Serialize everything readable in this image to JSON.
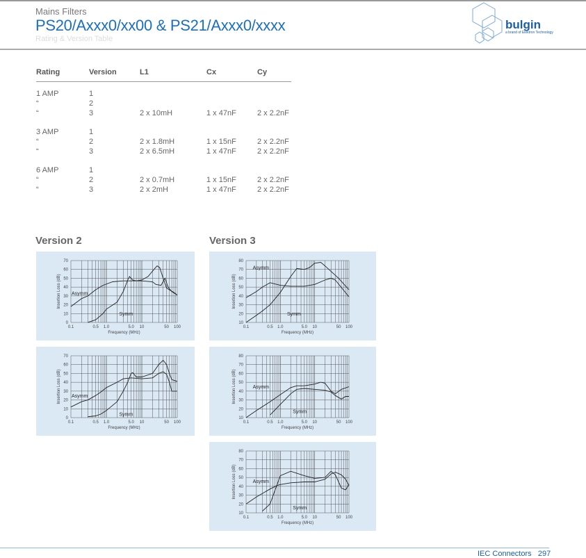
{
  "header": {
    "category": "Mains Filters",
    "title": "PS20/Axxx0/xx00 & PS21/Axxx0/xxxx",
    "subtitle": "Rating & Version Table"
  },
  "logo": {
    "name": "bulgin",
    "tagline": "a brand of Elektron Technology",
    "color": "#1b5ea8"
  },
  "table": {
    "headers": [
      "Rating",
      "Version",
      "L1",
      "Cx",
      "Cy"
    ],
    "groups": [
      [
        [
          "1 AMP",
          "1",
          "",
          "",
          ""
        ],
        [
          "“",
          "2",
          "",
          "",
          ""
        ],
        [
          "“",
          "3",
          "2 x 10mH",
          "1 x 47nF",
          "2 x 2.2nF"
        ]
      ],
      [
        [
          "3 AMP",
          "1",
          "",
          "",
          ""
        ],
        [
          "“",
          "2",
          "2 x 1.8mH",
          "1 x 15nF",
          "2 x 2.2nF"
        ],
        [
          "“",
          "3",
          "2 x 6.5mH",
          "1 x 47nF",
          "2 x 2.2nF"
        ]
      ],
      [
        [
          "6 AMP",
          "1",
          "",
          "",
          ""
        ],
        [
          "“",
          "2",
          "2 x 0.7mH",
          "1 x 15nF",
          "2 x 2.2nF"
        ],
        [
          "“",
          "3",
          "2 x 2mH",
          "1 x 47nF",
          "2 x 2.2nF"
        ]
      ]
    ]
  },
  "sections": {
    "v2": "Version 2",
    "v3": "Version 3"
  },
  "chart_data": [
    {
      "type": "line",
      "xlabel": "Frequency (MHz)",
      "ylabel": "Insertion Loss (dB)",
      "xscale": "log",
      "xlim": [
        0.1,
        100
      ],
      "ylim": [
        0,
        70
      ],
      "xticks": [
        "0.1",
        "0.5",
        "1.0",
        "5.0",
        "10",
        "50",
        "100"
      ],
      "yticks": [
        0,
        10,
        20,
        30,
        40,
        50,
        60,
        70
      ],
      "grid": true,
      "series": [
        {
          "name": "Asymm",
          "x": [
            0.1,
            0.2,
            0.3,
            0.5,
            0.8,
            1.5,
            3,
            10,
            20,
            25,
            35,
            45,
            55,
            70,
            100
          ],
          "y": [
            18,
            27,
            30,
            37,
            42,
            46,
            47,
            47,
            46,
            43,
            42,
            50,
            40,
            35,
            31
          ]
        },
        {
          "name": "Symm",
          "x": [
            0.3,
            0.5,
            0.8,
            1,
            2,
            3,
            4,
            4.5,
            5.5,
            7,
            10,
            15,
            22,
            27,
            32,
            40,
            50,
            65,
            80,
            100
          ],
          "y": [
            0,
            3,
            10,
            15,
            23,
            35,
            48,
            52,
            48,
            47,
            48,
            52,
            60,
            64,
            62,
            50,
            39,
            36,
            34,
            31
          ]
        }
      ]
    },
    {
      "type": "line",
      "xlabel": "Frequency (MHz)",
      "ylabel": "Insertion Loss (dB)",
      "xscale": "log",
      "xlim": [
        0.1,
        100
      ],
      "ylim": [
        0,
        70
      ],
      "xticks": [
        "0.1",
        "0.5",
        "1.0",
        "5.0",
        "10",
        "50",
        "100"
      ],
      "yticks": [
        0,
        10,
        20,
        30,
        40,
        50,
        60,
        70
      ],
      "grid": true,
      "series": [
        {
          "name": "Asymm",
          "x": [
            0.1,
            0.2,
            0.3,
            0.5,
            0.7,
            1,
            2,
            3,
            5,
            10,
            20,
            30,
            40,
            50,
            60,
            70,
            100
          ],
          "y": [
            12,
            18,
            20,
            25,
            29,
            34,
            40,
            44,
            45,
            44,
            45,
            50,
            52,
            49,
            40,
            30,
            30
          ]
        },
        {
          "name": "Symm",
          "x": [
            0.3,
            0.5,
            0.7,
            1,
            2,
            3,
            4,
            5,
            5.5,
            7,
            10,
            20,
            30,
            40,
            50,
            60,
            70,
            100
          ],
          "y": [
            1,
            2,
            4,
            8,
            18,
            30,
            40,
            50,
            51,
            46,
            46,
            50,
            60,
            65,
            60,
            50,
            43,
            41
          ]
        }
      ]
    },
    {
      "type": "line",
      "xlabel": "Frequency (MHz)",
      "ylabel": "Insertion Loss (dB)",
      "xscale": "log",
      "xlim": [
        0.1,
        100
      ],
      "ylim": [
        10,
        80
      ],
      "xticks": [
        "0.1",
        "0.5",
        "1.0",
        "5.0",
        "10",
        "50",
        "100"
      ],
      "yticks": [
        10,
        20,
        30,
        40,
        50,
        60,
        70,
        80
      ],
      "grid": true,
      "series": [
        {
          "name": "Asymm",
          "x": [
            0.1,
            0.2,
            0.3,
            0.5,
            1,
            2,
            5,
            10,
            20,
            30,
            40,
            100
          ],
          "y": [
            38,
            45,
            50,
            55,
            52,
            51,
            51,
            53,
            58,
            60,
            58,
            39
          ]
        },
        {
          "name": "Symm",
          "x": [
            0.1,
            0.2,
            0.3,
            0.5,
            1,
            2,
            3,
            5,
            7,
            10,
            15,
            20,
            50,
            100
          ],
          "y": [
            10,
            18,
            23,
            30,
            44,
            62,
            71,
            70,
            72,
            77,
            78,
            74,
            60,
            47
          ]
        }
      ]
    },
    {
      "type": "line",
      "xlabel": "Frequency (MHz)",
      "ylabel": "Insertion Loss (dB)",
      "xscale": "log",
      "xlim": [
        0.1,
        100
      ],
      "ylim": [
        10,
        80
      ],
      "xticks": [
        "0.1",
        "0.5",
        "1.0",
        "5.0",
        "10",
        "50",
        "100"
      ],
      "yticks": [
        10,
        20,
        30,
        40,
        50,
        60,
        70,
        80
      ],
      "grid": true,
      "series": [
        {
          "name": "Asymm",
          "x": [
            0.1,
            0.2,
            0.5,
            1,
            2,
            3,
            5,
            10,
            15,
            20,
            30,
            40,
            60,
            100
          ],
          "y": [
            10,
            18,
            28,
            36,
            44,
            46,
            46,
            48,
            50,
            49,
            40,
            37,
            42,
            45
          ]
        },
        {
          "name": "Symm",
          "x": [
            0.5,
            1,
            2,
            3,
            5,
            10,
            20,
            30,
            40,
            60,
            80,
            100
          ],
          "y": [
            13,
            25,
            37,
            42,
            43,
            42,
            41,
            39,
            35,
            31,
            34,
            34
          ]
        }
      ]
    },
    {
      "type": "line",
      "xlabel": "Frequency (MHz)",
      "ylabel": "Insertion Loss (dB)",
      "xscale": "log",
      "xlim": [
        0.1,
        100
      ],
      "ylim": [
        10,
        80
      ],
      "xticks": [
        "0.1",
        "0.5",
        "1.0",
        "5.0",
        "10",
        "50",
        "100"
      ],
      "yticks": [
        10,
        20,
        30,
        40,
        50,
        60,
        70,
        80
      ],
      "grid": true,
      "series": [
        {
          "name": "Asymm",
          "x": [
            0.1,
            0.2,
            0.5,
            0.8,
            1,
            2,
            5,
            10,
            20,
            30,
            40,
            60,
            80,
            100
          ],
          "y": [
            20,
            28,
            37,
            41,
            42,
            44,
            45,
            45,
            48,
            54,
            56,
            53,
            48,
            41
          ]
        },
        {
          "name": "Symm",
          "x": [
            0.3,
            0.5,
            0.8,
            1,
            2,
            5,
            10,
            20,
            30,
            40,
            50,
            60,
            80,
            100
          ],
          "y": [
            12,
            20,
            42,
            52,
            57,
            52,
            49,
            50,
            57,
            53,
            45,
            38,
            36,
            42
          ]
        }
      ]
    }
  ],
  "footer": {
    "section": "IEC Connectors",
    "page": "297"
  }
}
